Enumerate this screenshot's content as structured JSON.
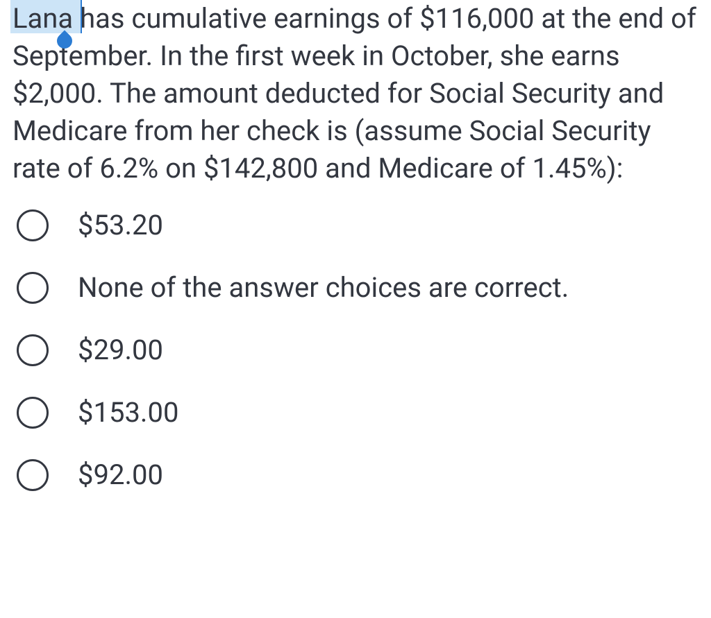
{
  "question": {
    "text": "Lana has cumulative earnings of $116,000 at the end of September. In the first week in October, she earns $2,000. The amount deducted for Social Security and Medicare from her check is (assume Social Security rate of 6.2% on $142,800 and Medicare of 1.45%):",
    "highlighted_word": "Lana"
  },
  "options": [
    {
      "label": "$53.20"
    },
    {
      "label": "None of the answer choices are correct."
    },
    {
      "label": "$29.00"
    },
    {
      "label": "$153.00"
    },
    {
      "label": "$92.00"
    }
  ],
  "colors": {
    "text": "#333740",
    "highlight_bg": "#cce4f7",
    "selection_accent": "#2b7cd3",
    "background": "#ffffff",
    "radio_border": "#333740"
  }
}
